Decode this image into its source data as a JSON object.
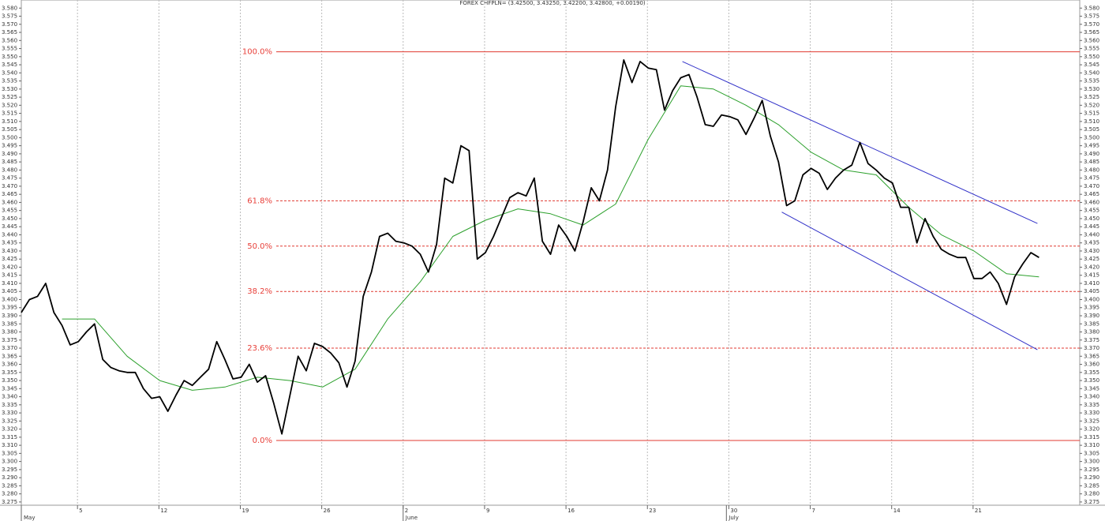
{
  "chart_data": {
    "type": "line",
    "title": "FOREX CHFPLN= (3.42500, 3.43250, 3.42200, 3.42800, +0.00190)",
    "xlim": [
      0,
      65
    ],
    "xticks": [
      {
        "value": 3.45,
        "label": "5"
      },
      {
        "value": 8.45,
        "label": "12"
      },
      {
        "value": 13.45,
        "label": "19"
      },
      {
        "value": 18.45,
        "label": "26"
      },
      {
        "value": 23.45,
        "label": "2"
      },
      {
        "value": 28.45,
        "label": "9"
      },
      {
        "value": 33.45,
        "label": "16"
      },
      {
        "value": 38.45,
        "label": "23"
      },
      {
        "value": 43.45,
        "label": "30"
      },
      {
        "value": 48.45,
        "label": "7"
      },
      {
        "value": 53.45,
        "label": "14"
      },
      {
        "value": 58.45,
        "label": "21"
      }
    ],
    "months": [
      {
        "value": 0,
        "label": "May"
      },
      {
        "value": 23.45,
        "label": "June"
      },
      {
        "value": 43.3,
        "label": "July"
      }
    ],
    "ylim": [
      3.273,
      3.585
    ],
    "yticks": [
      3.275,
      {
        "value": 3.28,
        "label": "3.280"
      },
      3.285,
      {
        "value": 3.29,
        "label": "3.290"
      },
      3.295,
      {
        "value": 3.3,
        "label": "3.300"
      },
      3.305,
      {
        "value": 3.31,
        "label": "3.310"
      },
      3.315,
      {
        "value": 3.32,
        "label": "3.320"
      },
      3.325,
      {
        "value": 3.33,
        "label": "3.330"
      },
      3.335,
      {
        "value": 3.34,
        "label": "3.340"
      },
      3.345,
      {
        "value": 3.35,
        "label": "3.350"
      },
      3.355,
      {
        "value": 3.36,
        "label": "3.360"
      },
      3.365,
      {
        "value": 3.37,
        "label": "3.370"
      },
      3.375,
      {
        "value": 3.38,
        "label": "3.380"
      },
      3.385,
      {
        "value": 3.39,
        "label": "3.390"
      },
      3.395,
      {
        "value": 3.4,
        "label": "3.400"
      },
      3.405,
      {
        "value": 3.41,
        "label": "3.410"
      },
      3.415,
      {
        "value": 3.42,
        "label": "3.420"
      },
      3.425,
      {
        "value": 3.43,
        "label": "3.430"
      },
      3.435,
      {
        "value": 3.44,
        "label": "3.440"
      },
      3.445,
      {
        "value": 3.45,
        "label": "3.450"
      },
      3.455,
      {
        "value": 3.46,
        "label": "3.460"
      },
      3.465,
      {
        "value": 3.47,
        "label": "3.470"
      },
      3.475,
      {
        "value": 3.48,
        "label": "3.480"
      },
      3.485,
      {
        "value": 3.49,
        "label": "3.490"
      },
      3.495,
      {
        "value": 3.5,
        "label": "3.500"
      },
      3.505,
      {
        "value": 3.51,
        "label": "3.510"
      },
      3.515,
      {
        "value": 3.52,
        "label": "3.520"
      },
      3.525,
      {
        "value": 3.53,
        "label": "3.530"
      },
      3.535,
      {
        "value": 3.54,
        "label": "3.540"
      },
      3.545,
      {
        "value": 3.55,
        "label": "3.550"
      },
      3.555,
      {
        "value": 3.56,
        "label": "3.560"
      },
      3.565,
      {
        "value": 3.57,
        "label": "3.570"
      },
      3.575,
      {
        "value": 3.58,
        "label": "3.580"
      }
    ],
    "grid": true,
    "series": [
      {
        "color": "#000000",
        "x": [
          0,
          0.5,
          1,
          1.5,
          2,
          2.5,
          3,
          3.5,
          4,
          4.5,
          5,
          5.5,
          6,
          6.5,
          7,
          7.5,
          8,
          8.5,
          9,
          9.5,
          10,
          10.5,
          11,
          11.5,
          12,
          12.5,
          13,
          13.5,
          14,
          14.5,
          15,
          15.5,
          16,
          16.5,
          17,
          17.5,
          18,
          18.5,
          19,
          19.5,
          20,
          20.5,
          21,
          21.5,
          22,
          22.5,
          23,
          23.5,
          24,
          24.5,
          25,
          25.5,
          26,
          26.5,
          27,
          27.5,
          28,
          28.5,
          29,
          29.5,
          30,
          30.5,
          31,
          31.5,
          32,
          32.5,
          33,
          33.5,
          34,
          34.5,
          35,
          35.5,
          36,
          36.5,
          37,
          37.5,
          38,
          38.5,
          39,
          39.5,
          40,
          40.5,
          41,
          41.5,
          42,
          42.5,
          43,
          43.5,
          44,
          44.5,
          45,
          45.5,
          46,
          46.5,
          47,
          47.5,
          48,
          48.5,
          49,
          49.5,
          50,
          50.5,
          51,
          51.5,
          52,
          52.5,
          53,
          53.5,
          54,
          54.5,
          55,
          55.5,
          56,
          56.5,
          57,
          57.5,
          58,
          58.5,
          59,
          59.5,
          60,
          60.5,
          61,
          61.5,
          62,
          62.5
        ],
        "values": [
          3.392,
          3.4,
          3.402,
          3.41,
          3.392,
          3.384,
          3.372,
          3.374,
          3.38,
          3.385,
          3.363,
          3.358,
          3.356,
          3.355,
          3.355,
          3.345,
          3.339,
          3.34,
          3.331,
          3.341,
          3.35,
          3.347,
          3.352,
          3.357,
          3.374,
          3.363,
          3.351,
          3.352,
          3.36,
          3.349,
          3.353,
          3.336,
          3.317,
          3.341,
          3.365,
          3.356,
          3.373,
          3.371,
          3.367,
          3.361,
          3.346,
          3.362,
          3.402,
          3.417,
          3.439,
          3.441,
          3.436,
          3.435,
          3.433,
          3.428,
          3.417,
          3.434,
          3.475,
          3.472,
          3.495,
          3.492,
          3.425,
          3.429,
          3.439,
          3.451,
          3.463,
          3.466,
          3.464,
          3.475,
          3.436,
          3.428,
          3.446,
          3.439,
          3.43,
          3.448,
          3.469,
          3.461,
          3.48,
          3.519,
          3.548,
          3.534,
          3.547,
          3.543,
          3.542,
          3.517,
          3.529,
          3.537,
          3.539,
          3.525,
          3.508,
          3.507,
          3.514,
          3.513,
          3.511,
          3.502,
          3.512,
          3.523,
          3.501,
          3.485,
          3.458,
          3.461,
          3.477,
          3.481,
          3.478,
          3.468,
          3.475,
          3.48,
          3.483,
          3.497,
          3.484,
          3.48,
          3.475,
          3.472,
          3.457,
          3.457,
          3.435,
          3.45,
          3.439,
          3.431,
          3.428,
          3.426,
          3.426,
          3.413,
          3.413,
          3.417,
          3.41,
          3.397,
          3.414,
          3.422,
          3.429,
          3.426
        ]
      },
      {
        "color": "#2ca02c",
        "x": [
          2.5,
          4.5,
          6.5,
          8.5,
          10.5,
          12.5,
          14.5,
          16.5,
          18.5,
          20.5,
          22.5,
          24.5,
          26.5,
          28.5,
          30.5,
          32.5,
          34.5,
          36.5,
          38.5,
          40.5,
          42.5,
          44.5,
          46.5,
          48.5,
          50.5,
          52.5,
          54.5,
          56.5,
          58.5,
          60.5,
          62.5
        ],
        "values": [
          3.388,
          3.388,
          3.365,
          3.35,
          3.344,
          3.346,
          3.352,
          3.35,
          3.346,
          3.357,
          3.388,
          3.411,
          3.439,
          3.449,
          3.456,
          3.453,
          3.446,
          3.459,
          3.499,
          3.532,
          3.53,
          3.52,
          3.508,
          3.491,
          3.48,
          3.477,
          3.457,
          3.44,
          3.43,
          3.416,
          3.414
        ]
      }
    ],
    "fib_levels": [
      {
        "label": "100.0%",
        "value": 3.553
      },
      {
        "label": "61.8%",
        "value": 3.461
      },
      {
        "label": "50.0%",
        "value": 3.433
      },
      {
        "label": "38.2%",
        "value": 3.405
      },
      {
        "label": "23.6%",
        "value": 3.37
      },
      {
        "label": "0.0%",
        "value": 3.313
      }
    ],
    "fib_color": "#e03a30",
    "channel_color": "#3030c8",
    "channel": [
      {
        "x": [
          40.6,
          62.4
        ],
        "values": [
          3.547,
          3.447
        ]
      },
      {
        "x": [
          46.7,
          62.4
        ],
        "values": [
          3.454,
          3.369
        ]
      }
    ]
  }
}
